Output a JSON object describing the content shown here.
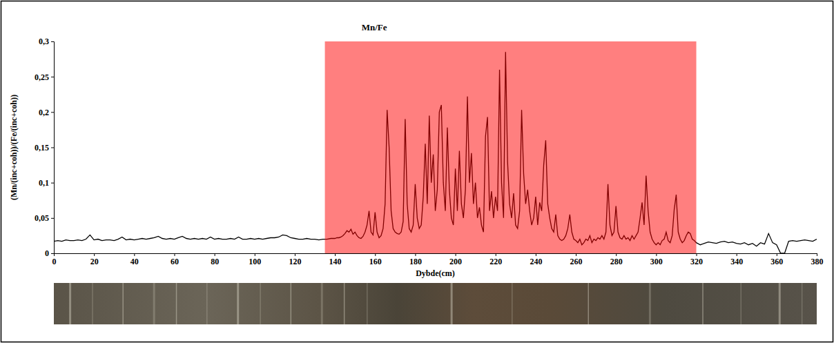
{
  "chart_data": {
    "type": "line",
    "title": "Mn/Fe",
    "xlabel": "Dybde(cm)",
    "ylabel": "(Mn/(inc+coh))/(Fe/(inc+coh))",
    "xlim": [
      0,
      380
    ],
    "xticks": [
      0,
      20,
      40,
      60,
      80,
      100,
      120,
      140,
      160,
      180,
      200,
      220,
      240,
      260,
      280,
      300,
      320,
      340,
      360,
      380
    ],
    "ylim": [
      0,
      0.3
    ],
    "yticks": [
      0,
      {
        "value": 0.05,
        "label": "0,05"
      },
      {
        "value": 0.1,
        "label": "0,1"
      },
      {
        "value": 0.15,
        "label": "0,15"
      },
      {
        "value": 0.2,
        "label": "0,2"
      },
      {
        "value": 0.25,
        "label": "0,25"
      },
      {
        "value": 0.3,
        "label": "0,3"
      }
    ],
    "grid": false,
    "shaded_range": [
      135,
      320
    ],
    "x": [
      0,
      2,
      4,
      6,
      8,
      10,
      12,
      14,
      16,
      18,
      20,
      22,
      24,
      26,
      28,
      30,
      32,
      34,
      36,
      38,
      40,
      42,
      44,
      46,
      48,
      50,
      52,
      54,
      56,
      58,
      60,
      62,
      64,
      66,
      68,
      70,
      72,
      74,
      76,
      78,
      80,
      82,
      84,
      86,
      88,
      90,
      92,
      94,
      96,
      98,
      100,
      102,
      104,
      106,
      108,
      110,
      112,
      114,
      116,
      118,
      120,
      122,
      124,
      126,
      128,
      130,
      132,
      134,
      136,
      138,
      140,
      141,
      142,
      143,
      144,
      145,
      146,
      147,
      148,
      149,
      150,
      151,
      152,
      153,
      154,
      155,
      156,
      157,
      158,
      159,
      160,
      161,
      162,
      163,
      164,
      165,
      166,
      167,
      168,
      169,
      170,
      171,
      172,
      173,
      174,
      175,
      176,
      177,
      178,
      179,
      180,
      181,
      182,
      183,
      184,
      185,
      186,
      187,
      188,
      189,
      190,
      191,
      192,
      193,
      194,
      195,
      196,
      197,
      198,
      199,
      200,
      201,
      202,
      203,
      204,
      205,
      206,
      207,
      208,
      209,
      210,
      211,
      212,
      213,
      214,
      215,
      216,
      217,
      218,
      219,
      220,
      221,
      222,
      223,
      224,
      225,
      226,
      227,
      228,
      229,
      230,
      231,
      232,
      233,
      234,
      235,
      236,
      237,
      238,
      239,
      240,
      241,
      242,
      243,
      244,
      245,
      246,
      247,
      248,
      249,
      250,
      251,
      252,
      253,
      254,
      255,
      256,
      257,
      258,
      259,
      260,
      261,
      262,
      263,
      264,
      265,
      266,
      267,
      268,
      269,
      270,
      271,
      272,
      273,
      274,
      275,
      276,
      277,
      278,
      279,
      280,
      281,
      282,
      283,
      284,
      285,
      286,
      287,
      288,
      289,
      290,
      291,
      292,
      293,
      294,
      295,
      296,
      297,
      298,
      299,
      300,
      301,
      302,
      303,
      304,
      305,
      306,
      307,
      308,
      309,
      310,
      311,
      312,
      313,
      314,
      315,
      316,
      317,
      318,
      319,
      320,
      322,
      324,
      326,
      328,
      330,
      332,
      334,
      336,
      338,
      340,
      342,
      344,
      346,
      348,
      350,
      352,
      354,
      356,
      358,
      360,
      362,
      364,
      366,
      368,
      370,
      372,
      374,
      376,
      378,
      380
    ],
    "series": [
      {
        "name": "Mn/Fe",
        "color": "#000000",
        "values": [
          0.017,
          0.018,
          0.017,
          0.019,
          0.018,
          0.018,
          0.019,
          0.018,
          0.02,
          0.026,
          0.019,
          0.02,
          0.018,
          0.019,
          0.019,
          0.018,
          0.02,
          0.023,
          0.019,
          0.02,
          0.019,
          0.02,
          0.021,
          0.02,
          0.021,
          0.022,
          0.024,
          0.021,
          0.02,
          0.021,
          0.02,
          0.022,
          0.024,
          0.021,
          0.02,
          0.021,
          0.02,
          0.021,
          0.02,
          0.023,
          0.02,
          0.021,
          0.02,
          0.02,
          0.021,
          0.02,
          0.023,
          0.02,
          0.02,
          0.021,
          0.02,
          0.021,
          0.02,
          0.021,
          0.022,
          0.022,
          0.023,
          0.026,
          0.025,
          0.022,
          0.021,
          0.02,
          0.02,
          0.021,
          0.02,
          0.02,
          0.019,
          0.02,
          0.02,
          0.021,
          0.021,
          0.022,
          0.022,
          0.023,
          0.025,
          0.028,
          0.032,
          0.03,
          0.034,
          0.027,
          0.03,
          0.025,
          0.022,
          0.021,
          0.024,
          0.03,
          0.04,
          0.06,
          0.03,
          0.026,
          0.058,
          0.03,
          0.022,
          0.025,
          0.035,
          0.07,
          0.203,
          0.15,
          0.06,
          0.035,
          0.03,
          0.028,
          0.027,
          0.03,
          0.045,
          0.19,
          0.07,
          0.035,
          0.03,
          0.04,
          0.098,
          0.05,
          0.035,
          0.04,
          0.08,
          0.155,
          0.07,
          0.195,
          0.1,
          0.14,
          0.06,
          0.09,
          0.2,
          0.21,
          0.1,
          0.06,
          0.178,
          0.09,
          0.05,
          0.04,
          0.12,
          0.06,
          0.145,
          0.07,
          0.05,
          0.09,
          0.222,
          0.1,
          0.142,
          0.07,
          0.1,
          0.05,
          0.065,
          0.04,
          0.03,
          0.165,
          0.193,
          0.06,
          0.088,
          0.05,
          0.08,
          0.06,
          0.26,
          0.1,
          0.05,
          0.285,
          0.13,
          0.07,
          0.05,
          0.085,
          0.04,
          0.035,
          0.06,
          0.203,
          0.113,
          0.07,
          0.09,
          0.06,
          0.04,
          0.05,
          0.08,
          0.04,
          0.072,
          0.06,
          0.125,
          0.16,
          0.07,
          0.05,
          0.035,
          0.03,
          0.055,
          0.025,
          0.02,
          0.018,
          0.02,
          0.025,
          0.035,
          0.055,
          0.03,
          0.02,
          0.018,
          0.015,
          0.02,
          0.012,
          0.015,
          0.02,
          0.018,
          0.025,
          0.015,
          0.02,
          0.018,
          0.022,
          0.02,
          0.025,
          0.02,
          0.03,
          0.098,
          0.04,
          0.025,
          0.03,
          0.067,
          0.03,
          0.022,
          0.02,
          0.025,
          0.02,
          0.022,
          0.018,
          0.025,
          0.02,
          0.025,
          0.03,
          0.05,
          0.072,
          0.04,
          0.11,
          0.06,
          0.03,
          0.02,
          0.015,
          0.012,
          0.015,
          0.012,
          0.018,
          0.02,
          0.03,
          0.018,
          0.015,
          0.025,
          0.062,
          0.083,
          0.03,
          0.02,
          0.015,
          0.018,
          0.025,
          0.03,
          0.028,
          0.02,
          0.018,
          0.015,
          0.012,
          0.014,
          0.016,
          0.015,
          0.014,
          0.016,
          0.017,
          0.015,
          0.016,
          0.014,
          0.013,
          0.015,
          0.012,
          0.014,
          0.01,
          0.015,
          0.013,
          0.028,
          0.015,
          0.012,
          0,
          0,
          0.017,
          0.018,
          0.017,
          0.018,
          0.019,
          0.018,
          0.017,
          0.02
        ]
      }
    ]
  }
}
